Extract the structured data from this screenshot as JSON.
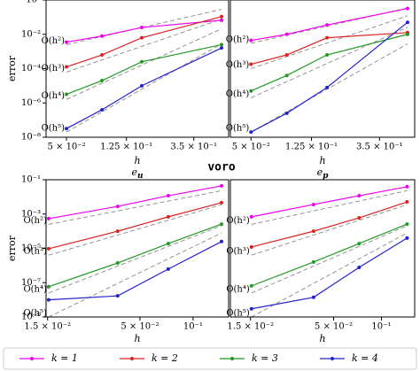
{
  "figure_title": "voro",
  "chart_data": [
    {
      "type": "line",
      "ylabel": "error",
      "xlabel": "h",
      "log_x": true,
      "log_y": true,
      "xlim": [
        0.0366,
        0.596
      ],
      "ylim": [
        1e-08,
        1
      ],
      "xticks": [
        {
          "value": 0.05,
          "label": "5 × 10⁻²"
        },
        {
          "value": 0.125,
          "label": "1.25 × 10⁻¹"
        },
        {
          "value": 0.35,
          "label": "3.5 × 10⁻¹"
        }
      ],
      "yticks": [
        {
          "value": 1e-08,
          "label": "10⁻⁸"
        },
        {
          "value": 1e-06,
          "label": "10⁻⁶"
        },
        {
          "value": 0.0001,
          "label": "10⁻⁴"
        },
        {
          "value": 0.01,
          "label": "10⁻²"
        },
        {
          "value": 1,
          "label": "10⁰"
        }
      ],
      "x": [
        0.05,
        0.086,
        0.158,
        0.535
      ],
      "series": [
        {
          "name": "k = 1",
          "color": "#ee00ee",
          "values": [
            0.0035,
            0.0079,
            0.025,
            0.066
          ]
        },
        {
          "name": "k = 2",
          "color": "#dd2222",
          "values": [
            0.000126,
            0.00063,
            0.0063,
            0.107
          ]
        },
        {
          "name": "k = 3",
          "color": "#229922",
          "values": [
            3.2e-06,
            2e-05,
            0.00025,
            0.0025
          ]
        },
        {
          "name": "k = 4",
          "color": "#2222cc",
          "values": [
            3.2e-08,
            4e-07,
            1e-05,
            0.0016
          ]
        }
      ],
      "reference_lines": [
        {
          "label": "O(h²)",
          "x": [
            0.05,
            0.535
          ],
          "values": [
            0.0025,
            0.285
          ]
        },
        {
          "label": "O(h³)",
          "x": [
            0.05,
            0.535
          ],
          "values": [
            6.3e-05,
            0.077
          ]
        },
        {
          "label": "O(h⁴)",
          "x": [
            0.05,
            0.535
          ],
          "values": [
            1.6e-06,
            0.021
          ]
        },
        {
          "label": "O(h⁵)",
          "x": [
            0.05,
            0.535
          ],
          "values": [
            2e-08,
            0.0028
          ]
        }
      ]
    },
    {
      "type": "line",
      "xlabel": "h",
      "log_x": true,
      "log_y": true,
      "xlim": [
        0.0366,
        0.596
      ],
      "ylim": [
        1e-08,
        1
      ],
      "xticks": [
        {
          "value": 0.05,
          "label": "5 × 10⁻²"
        },
        {
          "value": 0.125,
          "label": "1.25 × 10⁻¹"
        },
        {
          "value": 0.35,
          "label": "3.5 × 10⁻¹"
        }
      ],
      "x": [
        0.05,
        0.086,
        0.158,
        0.535
      ],
      "series": [
        {
          "name": "k = 1",
          "color": "#ee00ee",
          "values": [
            0.0044,
            0.01,
            0.035,
            0.32
          ]
        },
        {
          "name": "k = 2",
          "color": "#dd2222",
          "values": [
            0.00018,
            0.00063,
            0.0063,
            0.0126
          ]
        },
        {
          "name": "k = 3",
          "color": "#229922",
          "values": [
            5e-06,
            4e-05,
            0.00063,
            0.01
          ]
        },
        {
          "name": "k = 4",
          "color": "#2222cc",
          "values": [
            2e-08,
            2.5e-07,
            7.9e-06,
            0.05
          ]
        }
      ],
      "reference_lines": [
        {
          "label": "O(h²)",
          "x": [
            0.05,
            0.535
          ],
          "values": [
            0.003,
            0.34
          ]
        },
        {
          "label": "O(h³)",
          "x": [
            0.05,
            0.535
          ],
          "values": [
            0.0001,
            0.12
          ]
        },
        {
          "label": "O(h⁴)",
          "x": [
            0.05,
            0.535
          ],
          "values": [
            2e-06,
            0.026
          ]
        },
        {
          "label": "O(h⁵)",
          "x": [
            0.05,
            0.535
          ],
          "values": [
            2e-08,
            0.0028
          ]
        }
      ]
    },
    {
      "type": "line",
      "title": "e",
      "title_sub": "u",
      "ylabel": "error",
      "xlabel": "h",
      "log_x": true,
      "log_y": true,
      "xlim": [
        0.0147,
        0.159
      ],
      "ylim": [
        1e-09,
        0.1
      ],
      "xticks": [
        {
          "value": 0.015,
          "label": "1.5 × 10⁻²"
        },
        {
          "value": 0.05,
          "label": "5 × 10⁻²"
        },
        {
          "value": 0.1,
          "label": "10⁻¹"
        }
      ],
      "yticks": [
        {
          "value": 1e-09,
          "label": "10⁻⁹"
        },
        {
          "value": 1e-07,
          "label": "10⁻⁷"
        },
        {
          "value": 1e-05,
          "label": "10⁻⁵"
        },
        {
          "value": 0.001,
          "label": "10⁻³"
        },
        {
          "value": 0.1,
          "label": "10⁻¹"
        }
      ],
      "x": [
        0.0152,
        0.0374,
        0.0724,
        0.145
      ],
      "series": [
        {
          "name": "k = 1",
          "color": "#ee00ee",
          "values": [
            0.00054,
            0.0028,
            0.0117,
            0.044
          ]
        },
        {
          "name": "k = 2",
          "color": "#dd2222",
          "values": [
            9.5e-06,
            0.0001,
            0.00069,
            0.0046
          ]
        },
        {
          "name": "k = 3",
          "color": "#229922",
          "values": [
            5.8e-08,
            1.4e-06,
            1.9e-05,
            0.00026
          ]
        },
        {
          "name": "k = 4",
          "color": "#2222cc",
          "values": [
            1e-08,
            1.7e-08,
            6.2e-07,
            2.5e-05
          ]
        }
      ],
      "reference_lines": [
        {
          "label": "O(h²)",
          "x": [
            0.0152,
            0.145
          ],
          "values": [
            0.00025,
            0.023
          ]
        },
        {
          "label": "O(h³)",
          "x": [
            0.0152,
            0.145
          ],
          "values": [
            4e-06,
            0.0035
          ]
        },
        {
          "label": "O(h⁴)",
          "x": [
            0.0152,
            0.145
          ],
          "values": [
            2.5e-08,
            0.00021
          ]
        },
        {
          "label": "O(h⁵)",
          "x": [
            0.0152,
            0.145
          ],
          "values": [
            1e-09,
            7.9e-05
          ]
        }
      ]
    },
    {
      "type": "line",
      "title": "e",
      "title_sub": "p",
      "xlabel": "h",
      "log_x": true,
      "log_y": true,
      "xlim": [
        0.0112,
        0.162
      ],
      "ylim": [
        1e-09,
        0.1
      ],
      "xticks": [
        {
          "value": 0.015,
          "label": "1.5 × 10⁻²"
        },
        {
          "value": 0.05,
          "label": "5 × 10⁻²"
        },
        {
          "value": 0.1,
          "label": "10⁻¹"
        }
      ],
      "x": [
        0.0152,
        0.0374,
        0.0724,
        0.145
      ],
      "series": [
        {
          "name": "k = 1",
          "color": "#ee00ee",
          "values": [
            0.00069,
            0.0036,
            0.0117,
            0.039
          ]
        },
        {
          "name": "k = 2",
          "color": "#dd2222",
          "values": [
            1.2e-05,
            0.0001,
            0.0006,
            0.0051
          ]
        },
        {
          "name": "k = 3",
          "color": "#229922",
          "values": [
            6.5e-08,
            1.6e-06,
            1.9e-05,
            0.00026
          ]
        },
        {
          "name": "k = 4",
          "color": "#2222cc",
          "values": [
            3e-09,
            1.4e-08,
            7.8e-07,
            4e-05
          ]
        }
      ],
      "reference_lines": [
        {
          "label": "O(h²)",
          "x": [
            0.0152,
            0.145
          ],
          "values": [
            0.00025,
            0.023
          ]
        },
        {
          "label": "O(h³)",
          "x": [
            0.0152,
            0.145
          ],
          "values": [
            4e-06,
            0.0035
          ]
        },
        {
          "label": "O(h⁴)",
          "x": [
            0.0152,
            0.145
          ],
          "values": [
            2.5e-08,
            0.00021
          ]
        },
        {
          "label": "O(h⁵)",
          "x": [
            0.0152,
            0.145
          ],
          "values": [
            1e-09,
            7.9e-05
          ]
        }
      ]
    }
  ]
}
